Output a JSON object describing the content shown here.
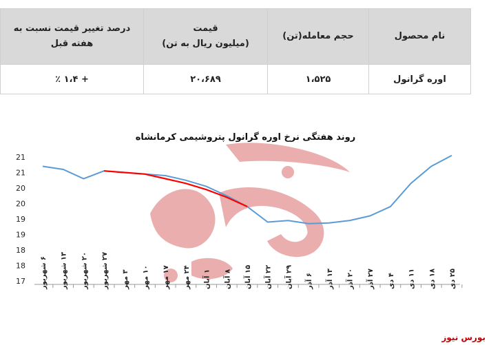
{
  "table": {
    "headers": {
      "product": "نام محصول",
      "volume": "حجم معامله(تن)",
      "price_line1": "قیمت",
      "price_line2": "(میلیون ریال به تن)",
      "change": "درصد تغییر قیمت نسبت به هفته قبل"
    },
    "row": {
      "product": "اوره گرانول",
      "volume": "۱،۵۲۵",
      "price": "۲۰،۶۸۹",
      "change": "+ ۱،۴ ٪"
    }
  },
  "chart_data": {
    "type": "line",
    "title": "روند هفتگی نرخ اوره گرانول پتروشیمی کرمانشاه",
    "categories": [
      "۶ شهریور",
      "۱۳ شهریور",
      "۲۰ شهریور",
      "۲۷ شهریور",
      "۳ مهر",
      "۱۰ مهر",
      "۱۷ مهر",
      "۲۴ مهر",
      "۱ آبان",
      "۸ آبان",
      "۱۵ آبان",
      "۲۲ آبان",
      "۲۹ آبان",
      "۶ آذر",
      "۱۳ آذر",
      "۲۰ آذر",
      "۲۷ آذر",
      "۴ دی",
      "۱۱ دی",
      "۱۸ دی",
      "۲۵ دی"
    ],
    "y_tick_labels": [
      "17",
      "18",
      "18",
      "19",
      "19",
      "20",
      "20",
      "21",
      "21"
    ],
    "ylim": [
      17,
      21
    ],
    "series": [
      {
        "color": "#5b9bd5",
        "values": [
          20.7,
          20.6,
          20.3,
          20.55,
          20.5,
          20.45,
          20.4,
          20.25,
          20.05,
          19.75,
          19.4,
          18.9,
          18.95,
          18.85,
          18.87,
          18.95,
          19.1,
          19.4,
          20.15,
          20.7,
          21.05
        ]
      },
      {
        "color": "#ff0000",
        "values": [
          null,
          null,
          null,
          20.55,
          20.5,
          20.45,
          20.3,
          20.15,
          19.95,
          19.7,
          19.4,
          null,
          null,
          null,
          null,
          null,
          null,
          null,
          null,
          null,
          null
        ]
      }
    ],
    "grid": false
  },
  "watermark": {
    "text": "بورس نیوز",
    "color": "#e8a0a0"
  },
  "source": {
    "label": "بورس نیوز",
    "color": "#c00000"
  }
}
